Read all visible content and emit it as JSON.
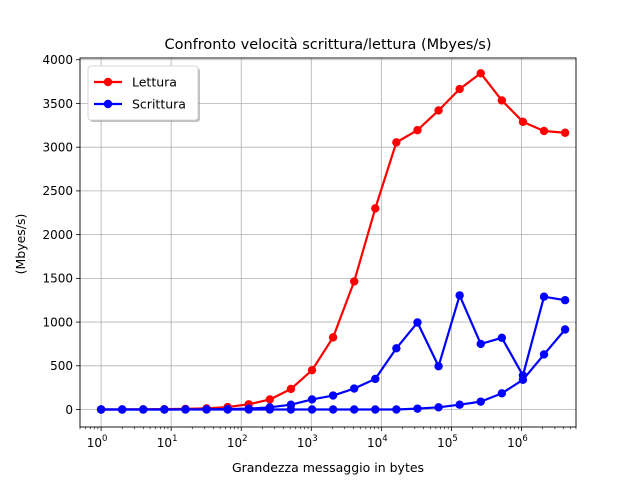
{
  "chart_data": {
    "type": "line",
    "title": "Confronto velocità scrittura/lettura (Mbyes/s)",
    "xlabel": "Grandezza messaggio in bytes",
    "ylabel": "(Mbyes/s)",
    "x_scale": "log",
    "xlim": [
      0.5,
      6000000
    ],
    "ylim": [
      -200,
      4020
    ],
    "x_ticks": [
      {
        "value": 1,
        "base": "10",
        "exp": "0"
      },
      {
        "value": 10,
        "base": "10",
        "exp": "1"
      },
      {
        "value": 100,
        "base": "10",
        "exp": "2"
      },
      {
        "value": 1000,
        "base": "10",
        "exp": "3"
      },
      {
        "value": 10000,
        "base": "10",
        "exp": "4"
      },
      {
        "value": 100000,
        "base": "10",
        "exp": "5"
      },
      {
        "value": 1000000,
        "base": "10",
        "exp": "6"
      }
    ],
    "y_ticks": [
      0,
      500,
      1000,
      1500,
      2000,
      2500,
      3000,
      3500,
      4000
    ],
    "grid": true,
    "legend_position": "top-left",
    "series": [
      {
        "name": "Lettura",
        "color": "#ff0000",
        "x": [
          1,
          2,
          4,
          8,
          16,
          32,
          64,
          128,
          256,
          512,
          1024,
          2048,
          4096,
          8192,
          16384,
          32768,
          65536,
          131072,
          262144,
          524288,
          1048576,
          2097152,
          4194304
        ],
        "values": [
          0,
          1,
          2,
          4,
          7,
          14,
          28,
          60,
          115,
          235,
          450,
          825,
          1465,
          2300,
          3055,
          3195,
          3420,
          3665,
          3845,
          3535,
          3290,
          3185,
          3165
        ]
      },
      {
        "name": "Scrittura",
        "color": "#0000ff",
        "x": [
          1,
          2,
          4,
          8,
          16,
          32,
          64,
          128,
          256,
          512,
          1024,
          2048,
          4096,
          8192,
          16384,
          32768,
          65536,
          131072,
          262144,
          524288,
          1048576,
          2097152,
          4194304
        ],
        "values": [
          0,
          0,
          0,
          0,
          1,
          2,
          5,
          10,
          25,
          55,
          115,
          160,
          240,
          350,
          700,
          995,
          495,
          1305,
          750,
          820,
          390,
          1290,
          1250
        ]
      },
      {
        "name": "",
        "color": "#0000ff",
        "x": [
          1,
          2,
          4,
          8,
          16,
          32,
          64,
          128,
          256,
          512,
          1024,
          2048,
          4096,
          8192,
          16384,
          32768,
          65536,
          131072,
          262144,
          524288,
          1048576,
          2097152,
          4194304
        ],
        "values": [
          0,
          0,
          0,
          0,
          0,
          0,
          0,
          0,
          0,
          0,
          0,
          0,
          0,
          0,
          0,
          10,
          25,
          55,
          90,
          185,
          340,
          630,
          915
        ]
      }
    ]
  }
}
